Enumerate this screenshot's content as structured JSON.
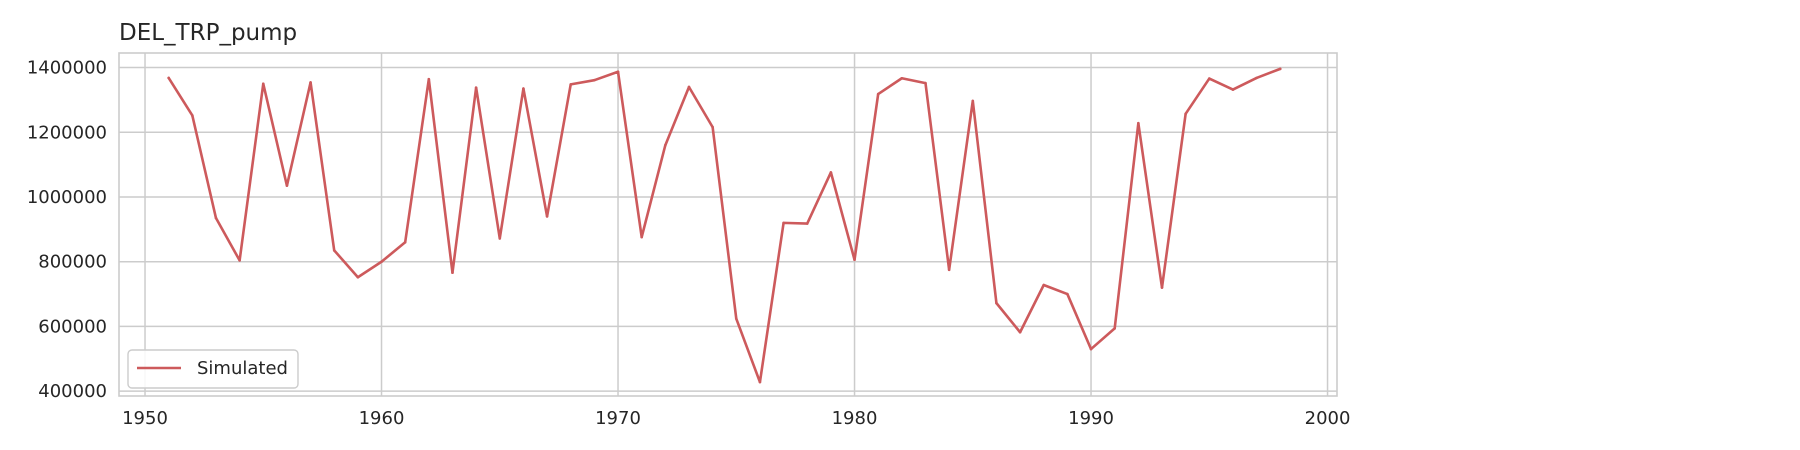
{
  "chart_data": {
    "type": "line",
    "title": "DEL_TRP_pump",
    "xlabel": "",
    "ylabel": "",
    "xlim": [
      1948.9,
      2000.4
    ],
    "ylim": [
      385000,
      1445000
    ],
    "x_ticks": [
      1950,
      1960,
      1970,
      1980,
      1990,
      2000
    ],
    "y_ticks": [
      400000,
      600000,
      800000,
      1000000,
      1200000,
      1400000
    ],
    "grid": true,
    "legend_position": "lower-left",
    "series": [
      {
        "name": "Simulated",
        "color": "#cd5a5c",
        "x": [
          1951,
          1952,
          1953,
          1954,
          1955,
          1956,
          1957,
          1958,
          1959,
          1960,
          1961,
          1962,
          1963,
          1964,
          1965,
          1966,
          1967,
          1968,
          1969,
          1970,
          1971,
          1972,
          1973,
          1974,
          1975,
          1976,
          1977,
          1978,
          1979,
          1980,
          1981,
          1982,
          1983,
          1984,
          1985,
          1986,
          1987,
          1988,
          1989,
          1990,
          1991,
          1992,
          1993,
          1994,
          1995,
          1996,
          1997,
          1998
        ],
        "values": [
          1368000,
          1252000,
          935000,
          804000,
          1350000,
          1035000,
          1354000,
          835000,
          752000,
          800000,
          860000,
          1364000,
          766000,
          1338000,
          872000,
          1335000,
          940000,
          1348000,
          1361000,
          1387000,
          876000,
          1160000,
          1340000,
          1216000,
          624000,
          428000,
          920000,
          918000,
          1076000,
          806000,
          1318000,
          1367000,
          1352000,
          775000,
          1297000,
          672000,
          582000,
          728000,
          700000,
          530000,
          594000,
          1228000,
          720000,
          1257000,
          1366000,
          1332000,
          1368000,
          1396000
        ]
      }
    ]
  }
}
